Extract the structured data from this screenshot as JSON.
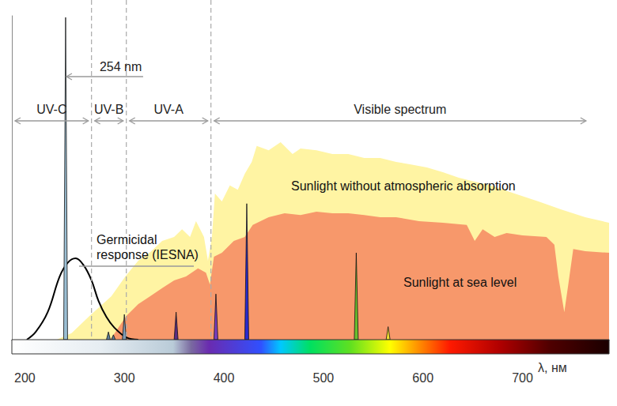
{
  "chart_data": {
    "type": "area",
    "x_label": "λ, нм",
    "xlim": [
      200,
      800
    ],
    "xticks": [
      200,
      300,
      400,
      500,
      600,
      700
    ],
    "ylim": [
      0,
      100
    ],
    "tick_labels": "x",
    "grid": false,
    "series": [
      {
        "name": "Sunlight without atmospheric absorption",
        "type": "area",
        "color": "#fff4a3",
        "x": [
          245,
          260,
          278,
          300,
          314,
          327,
          339,
          351,
          363,
          371,
          379,
          385,
          393,
          397,
          401,
          404,
          411,
          419,
          427,
          434,
          441,
          446,
          458,
          470,
          482,
          490,
          506,
          522,
          538,
          554,
          570,
          586,
          601,
          617,
          633,
          649,
          665,
          681,
          705,
          729,
          752,
          776,
          800
        ],
        "values": [
          0,
          2,
          7.3,
          13.4,
          19.5,
          24.4,
          27,
          30.5,
          31.7,
          34.1,
          31.7,
          36.6,
          31.7,
          24.4,
          31.7,
          45.1,
          42.7,
          47.6,
          46.3,
          51.2,
          54.9,
          59.8,
          58.5,
          61,
          57.3,
          59,
          58.5,
          57.3,
          57.3,
          56.1,
          56.1,
          54.9,
          54.1,
          53.2,
          51.7,
          50,
          48.8,
          47.6,
          45.1,
          42.7,
          40.2,
          37.8,
          36.1
        ]
      },
      {
        "name": "Sunlight at sea level",
        "type": "area",
        "color": "#f7986b",
        "x": [
          299,
          307,
          315,
          327,
          339,
          351,
          363,
          375,
          387,
          395,
          399,
          403,
          411,
          423,
          434,
          442,
          458,
          474,
          490,
          506,
          522,
          538,
          554,
          570,
          586,
          609,
          633,
          657,
          665,
          673,
          685,
          697,
          713,
          737,
          745,
          749,
          755,
          759,
          764,
          776,
          800
        ],
        "values": [
          0,
          3.7,
          7.3,
          11,
          13.4,
          15.9,
          18.3,
          19.5,
          22,
          20.7,
          17,
          25.6,
          26.8,
          30.5,
          31.7,
          35.4,
          37.8,
          39,
          38.5,
          39.5,
          39,
          39,
          38.5,
          37.8,
          37.8,
          36.6,
          36.1,
          35.4,
          30.5,
          34.1,
          31.7,
          32.9,
          32.2,
          31.7,
          29.3,
          19.5,
          8.5,
          17,
          28,
          27.3,
          26.8
        ]
      },
      {
        "name": "Germicidal response (IESNA)",
        "type": "line",
        "color": "#000000",
        "x": [
          215,
          224,
          236,
          248,
          256,
          264,
          272,
          280,
          287,
          295,
          303,
          315,
          327
        ],
        "values": [
          0,
          2.4,
          8.5,
          19.5,
          23.7,
          25.1,
          23,
          18.3,
          12,
          7,
          3.7,
          0.7,
          0
        ]
      },
      {
        "type": "spike",
        "x": [
          254,
          297,
          302,
          313,
          365,
          405,
          436,
          546,
          578
        ],
        "values": [
          99.5,
          2.4,
          1.5,
          7.8,
          8.5,
          14.1,
          42,
          26.8,
          4
        ],
        "colors": [
          "#9bbfd4",
          "#5d7f9a",
          "#5d7f9a",
          "#7d9bb5",
          "#5a2d82",
          "#7a3fbf",
          "#2a2acf",
          "#6abf2e",
          "#f0e030"
        ]
      }
    ],
    "regions": [
      {
        "label": "UV-C",
        "from": 200,
        "to": 280
      },
      {
        "label": "UV-B",
        "from": 280,
        "to": 315
      },
      {
        "label": "UV-A",
        "from": 315,
        "to": 400
      },
      {
        "label": "Visible spectrum",
        "from": 400,
        "to": 780
      }
    ],
    "annotations": [
      {
        "text": "254 nm",
        "x": 254
      }
    ]
  }
}
